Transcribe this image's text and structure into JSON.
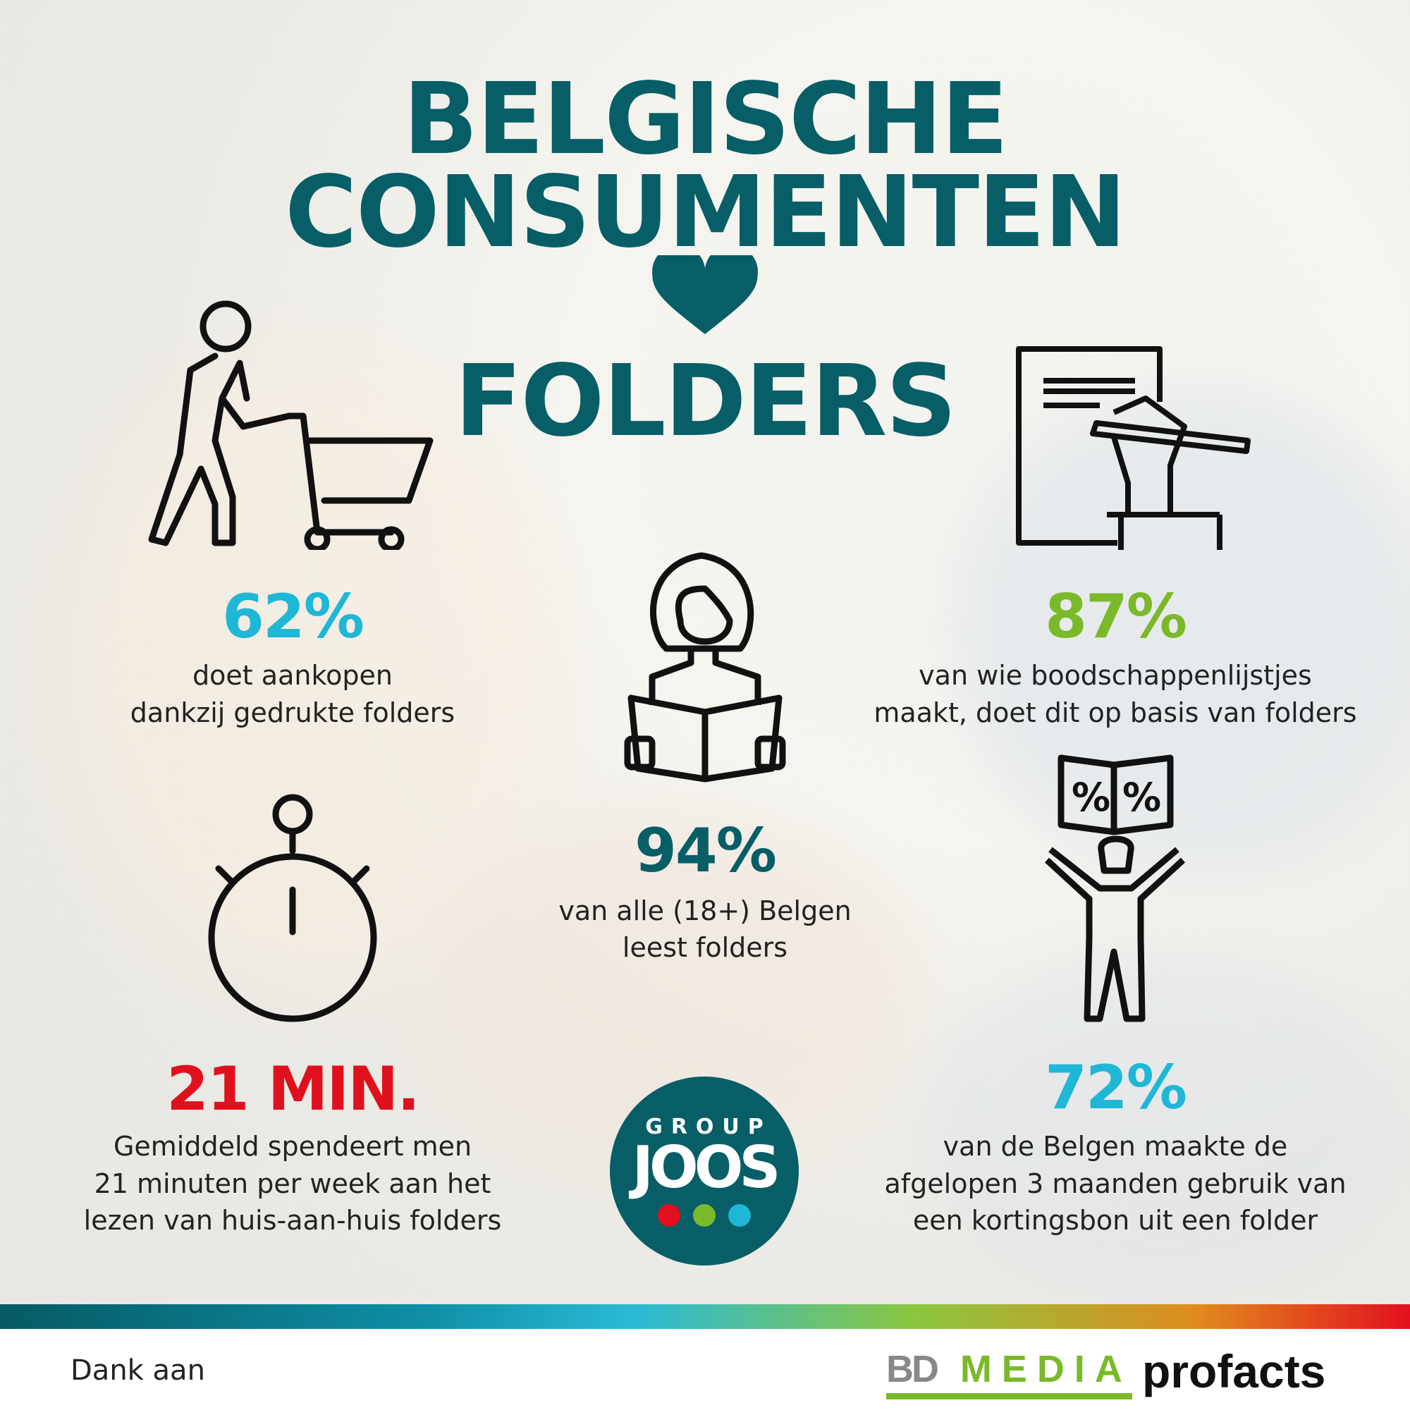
{
  "title": {
    "line1": "BELGISCHE",
    "line2": "CONSUMENTEN",
    "heart_icon": "heart-icon",
    "line3": "FOLDERS"
  },
  "colors": {
    "teal": "#075e67",
    "blue": "#1fb7d6",
    "green": "#7ab929",
    "red": "#e0101e"
  },
  "stats": [
    {
      "value": "62%",
      "text1": "doet aankopen",
      "text2": "dankzij gedrukte folders",
      "icon": "shopping-cart-person-icon",
      "color": "#1fb7d6"
    },
    {
      "value": "87%",
      "text1": "van wie boodschappenlijstjes",
      "text2": "maakt, doet dit op basis van folders",
      "icon": "writing-list-icon",
      "color": "#7ab929"
    },
    {
      "value": "94%",
      "text1": "van alle (18+) Belgen",
      "text2": "leest folders",
      "icon": "person-reading-icon",
      "color": "#075e67"
    },
    {
      "value": "21 MIN.",
      "text1": "Gemiddeld spendeert men",
      "text2": "21 minuten per week aan het",
      "text3": "lezen van huis-aan-huis folders",
      "icon": "stopwatch-icon",
      "color": "#e0101e"
    },
    {
      "value": "72%",
      "text1": "van de Belgen maakte de",
      "text2": "afgelopen 3 maanden gebruik van",
      "text3": "een kortingsbon uit een folder",
      "icon": "person-coupon-icon",
      "color": "#1fb7d6"
    }
  ],
  "logo": {
    "top": "GROUP",
    "main": "JOOS"
  },
  "footer": {
    "thanks": "Dank aan",
    "sponsor1_a": "BD",
    "sponsor1_b": "MEDIA",
    "sponsor2": "profacts"
  }
}
